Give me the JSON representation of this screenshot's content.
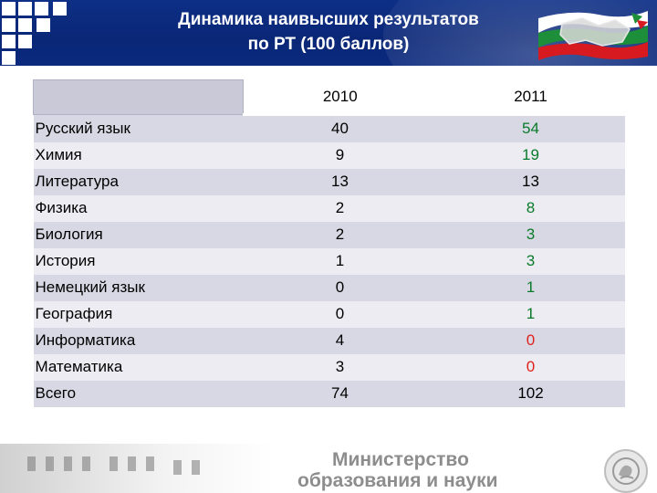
{
  "header": {
    "title_line1": "Динамика наивысших результатов",
    "title_line2": "по  РТ (100 баллов)"
  },
  "table": {
    "columns": [
      "",
      "2010",
      "2011"
    ],
    "rows": [
      {
        "subject": "Русский язык",
        "y2010": "40",
        "y2011": "54"
      },
      {
        "subject": "Химия",
        "y2010": "9",
        "y2011": "19"
      },
      {
        "subject": "Литература",
        "y2010": "13",
        "y2011": "13"
      },
      {
        "subject": "Физика",
        "y2010": "2",
        "y2011": "8"
      },
      {
        "subject": "Биология",
        "y2010": "2",
        "y2011": "3"
      },
      {
        "subject": "История",
        "y2010": "1",
        "y2011": "3"
      },
      {
        "subject": "Немецкий язык",
        "y2010": "0",
        "y2011": "1"
      },
      {
        "subject": "География",
        "y2010": "0",
        "y2011": "1"
      },
      {
        "subject": "Информатика",
        "y2010": "4",
        "y2011": "0"
      },
      {
        "subject": "Математика",
        "y2010": "3",
        "y2011": "0"
      },
      {
        "subject": "Всего",
        "y2010": "74",
        "y2011": "102"
      }
    ]
  },
  "footer": {
    "ministry_line1": "Министерство",
    "ministry_line2": "образования и науки"
  },
  "icons": {
    "flag": "tatarstan-map-flag-icon",
    "emblem": "tatarstan-emblem-icon"
  },
  "colors": {
    "header_bg": "#0b2a7e",
    "row_dark": "#d8d8e4",
    "row_light": "#ececf2",
    "decrease": "#e0211b",
    "increase": "#0a7a2a",
    "flag_green": "#1d8f3a",
    "flag_red": "#d71920"
  }
}
